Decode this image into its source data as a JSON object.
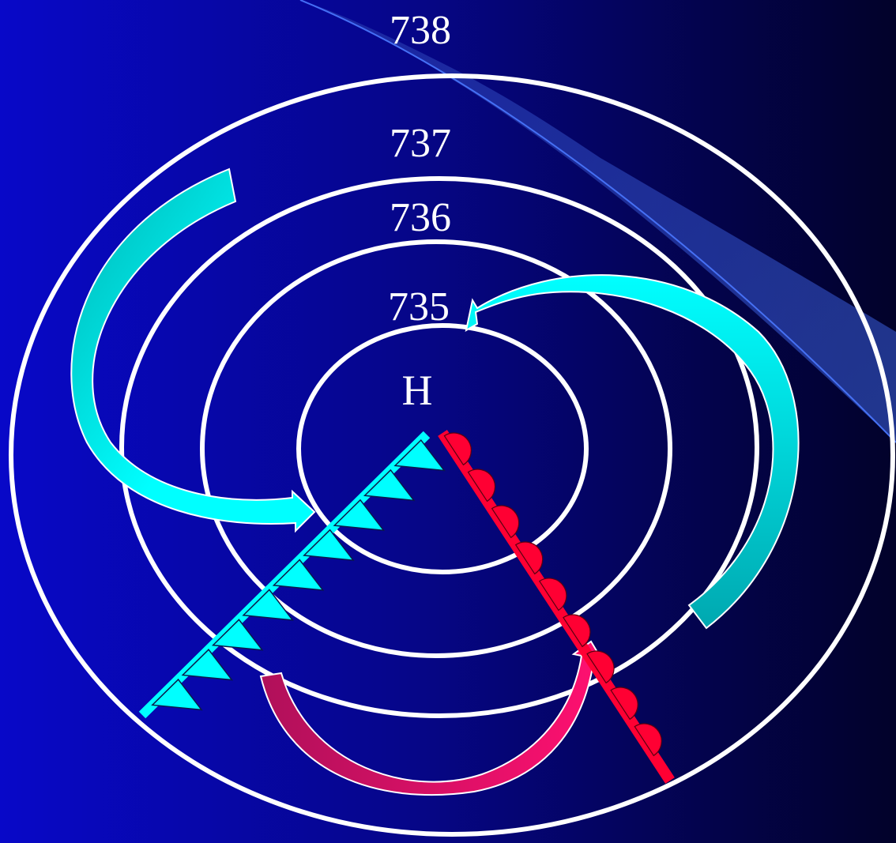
{
  "diagram": {
    "isobars": [
      {
        "label": "738"
      },
      {
        "label": "737"
      },
      {
        "label": "736"
      },
      {
        "label": "735"
      }
    ],
    "center_label": "H",
    "colors": {
      "isobar": "#ffffff",
      "cold_front": "#00ffff",
      "warm_front": "#ff0033",
      "flow_arrow_light": "#00ffff",
      "flow_arrow_dark": "#00b8b8",
      "warm_flow_arrow": "#e0106a",
      "swoosh": "#3a5fd8"
    }
  }
}
